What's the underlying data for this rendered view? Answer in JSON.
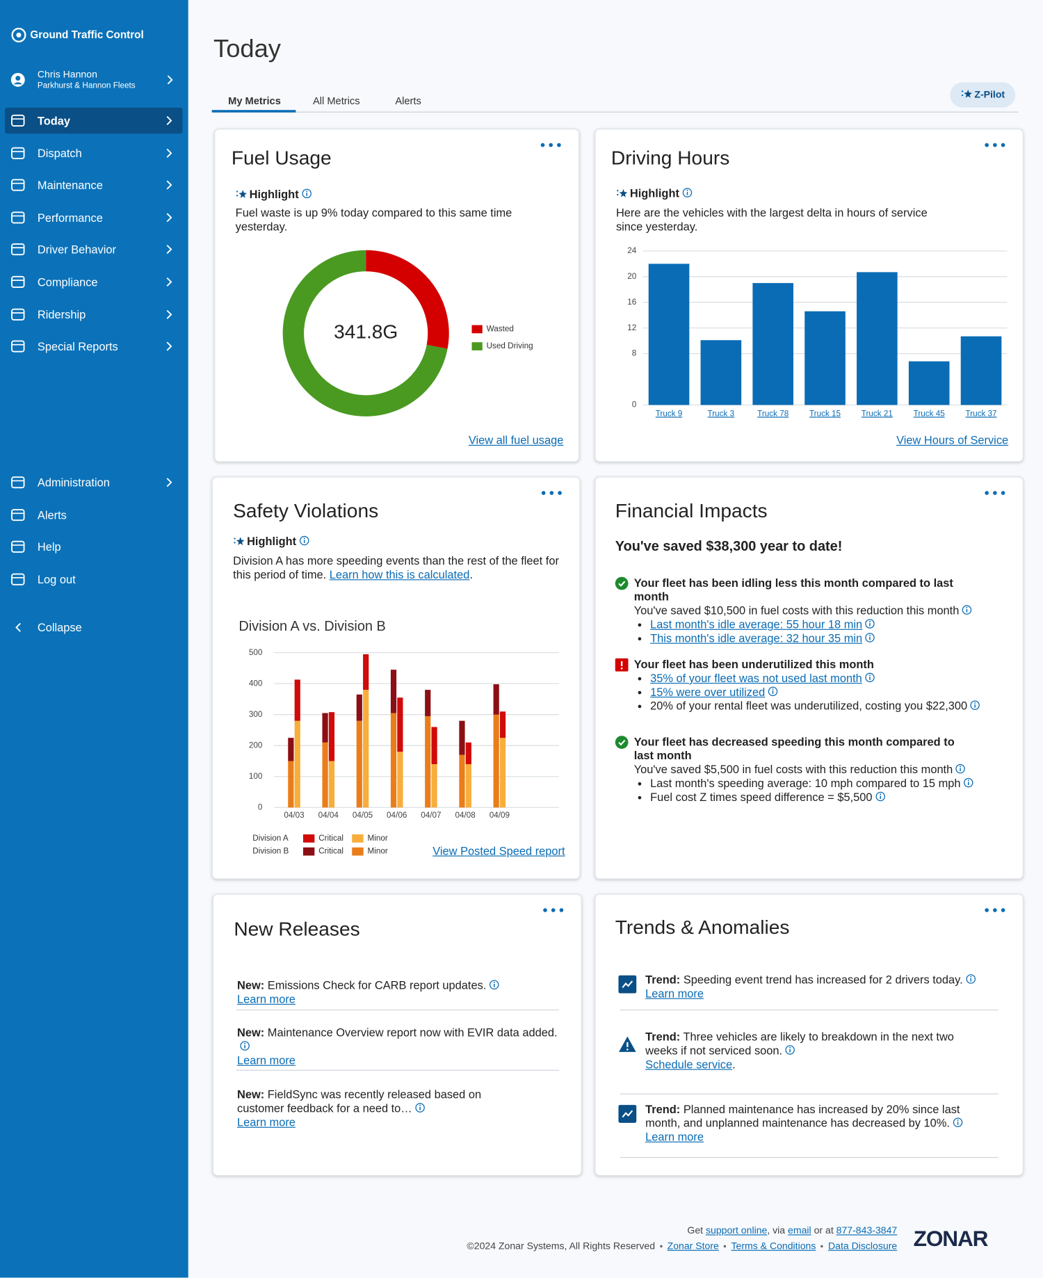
{
  "sidebar": {
    "brand": "Ground Traffic Control",
    "user": {
      "name": "Chris Hannon",
      "org": "Parkhurst & Hannon Fleets"
    },
    "nav": [
      "Today",
      "Dispatch",
      "Maintenance",
      "Performance",
      "Driver Behavior",
      "Compliance",
      "Ridership",
      "Special Reports"
    ],
    "active": 0,
    "bottom": [
      "Administration",
      "Alerts",
      "Help",
      "Log out"
    ],
    "collapse": "Collapse"
  },
  "header": {
    "title": "Today",
    "tabs": [
      "My Metrics",
      "All Metrics",
      "Alerts"
    ],
    "active_tab": 0,
    "button": "Z-Pilot"
  },
  "fuel": {
    "title": "Fuel Usage",
    "highlight": "Highlight",
    "text": "Fuel waste is up 9% today compared to this same time yesterday.",
    "link": "View all fuel usage",
    "chart": {
      "type": "pie",
      "center_label": "341.8G",
      "categories": [
        "Wasted",
        "Used Driving"
      ],
      "values": [
        28,
        72
      ],
      "colors": [
        "#d40000",
        "#4a9a22"
      ]
    }
  },
  "driving": {
    "title": "Driving Hours",
    "highlight": "Highlight",
    "text": "Here are the vehicles with the largest delta in hours of service since yesterday.",
    "link": "View Hours of Service",
    "chart": {
      "type": "bar",
      "categories": [
        "Truck 9",
        "Truck 3",
        "Truck 78",
        "Truck 15",
        "Truck 21",
        "Truck 45",
        "Truck 37"
      ],
      "values": [
        22,
        10.1,
        19,
        14.6,
        20.7,
        6.8,
        10.7
      ],
      "color": "#0a6cb5",
      "ylim": [
        0,
        24
      ],
      "yticks": [
        0,
        8,
        12,
        16,
        20,
        24
      ],
      "grid": true
    }
  },
  "safety": {
    "title": "Safety Violations",
    "highlight": "Highlight",
    "text": "Division A has more speeding events than the rest of the fleet for this period of time.",
    "text_link": "Learn how this is calculated",
    "text_end": ".",
    "link": "View Posted Speed report",
    "chart": {
      "type": "bar",
      "stacked": true,
      "title": "Division A vs. Division B",
      "categories": [
        "04/03",
        "04/04",
        "04/05",
        "04/06",
        "04/07",
        "04/08",
        "04/09"
      ],
      "ylim": [
        0,
        500
      ],
      "yticks": [
        0,
        100,
        200,
        300,
        400,
        500
      ],
      "grid": true,
      "groups": [
        {
          "name": "Division A",
          "series": [
            {
              "name": "Critical",
              "color": "#d10a0a",
              "values": [
                133,
                158,
                115,
                175,
                120,
                70,
                85
              ]
            },
            {
              "name": "Minor",
              "color": "#f7ae3b",
              "values": [
                280,
                150,
                380,
                180,
                140,
                140,
                225
              ]
            }
          ]
        },
        {
          "name": "Division B",
          "series": [
            {
              "name": "Critical",
              "color": "#8b0f14",
              "values": [
                75,
                95,
                85,
                140,
                85,
                110,
                98
              ]
            },
            {
              "name": "Minor",
              "color": "#ea7d1a",
              "values": [
                150,
                210,
                280,
                305,
                295,
                170,
                300
              ]
            }
          ]
        }
      ]
    }
  },
  "financial": {
    "title": "Financial Impacts",
    "headline": "You've saved $38,300 year to date!",
    "items": [
      {
        "status": "ok",
        "title": "Your fleet has been idling less this month compared to last month",
        "lines": [
          {
            "text": "You've saved $10,500 in fuel costs with this reduction this month",
            "info": true
          },
          {
            "text": "Last month's idle average: 55 hour 18 min",
            "bullet": true,
            "link": true,
            "info": true
          },
          {
            "text": "This month's idle average: 32 hour 35 min",
            "bullet": true,
            "link": true,
            "info": true
          }
        ]
      },
      {
        "status": "error",
        "title": "Your fleet has been underutilized this month",
        "lines": [
          {
            "text": "35% of your fleet was not used last month",
            "bullet": true,
            "link": true,
            "info": true
          },
          {
            "text": "15% were over utilized",
            "bullet": true,
            "link": true,
            "info": true
          },
          {
            "text": "20% of your rental fleet was underutilized, costing you $22,300",
            "bullet": true,
            "info": true
          }
        ]
      },
      {
        "status": "ok",
        "title": "Your fleet has decreased speeding this month compared to last month",
        "lines": [
          {
            "text": "You've saved $5,500 in fuel costs with this reduction this month",
            "info": true
          },
          {
            "text": "Last month's speeding average: 10 mph compared to 15 mph",
            "bullet": true,
            "info": true
          },
          {
            "text": "Fuel cost Z times speed difference = $5,500",
            "bullet": true,
            "info": true
          }
        ]
      }
    ]
  },
  "releases": {
    "title": "New Releases",
    "items": [
      {
        "label": "New:",
        "text": "Emissions Check for CARB report updates.",
        "link": "Learn more"
      },
      {
        "label": "New:",
        "text": "Maintenance Overview report now with EVIR data added.",
        "link": "Learn more"
      },
      {
        "label": "New:",
        "text": "FieldSync was recently released based on customer feedback for a need to…",
        "link": "Learn more"
      }
    ]
  },
  "trends": {
    "title": "Trends & Anomalies",
    "items": [
      {
        "icon": "trend",
        "label": "Trend:",
        "text": "Speeding event trend has increased for 2 drivers today.",
        "link": "Learn more"
      },
      {
        "icon": "warning",
        "label": "Trend:",
        "text": "Three vehicles are likely to breakdown in the next two weeks if not serviced soon.",
        "link": "Schedule service",
        "link_end": "."
      },
      {
        "icon": "trend",
        "label": "Trend:",
        "text": "Planned maintenance has increased by 20% since last month, and unplanned maintenance has decreased by 10%.",
        "link": "Learn more"
      }
    ]
  },
  "footer": {
    "support": [
      "Get",
      "support online",
      ", via",
      "email",
      "or at",
      "877-843-3847"
    ],
    "copyright": "©2024 Zonar Systems, All Rights Reserved",
    "links": [
      "Zonar Store",
      "Terms & Conditions",
      "Data Disclosure"
    ],
    "logo": "ZONAR"
  }
}
